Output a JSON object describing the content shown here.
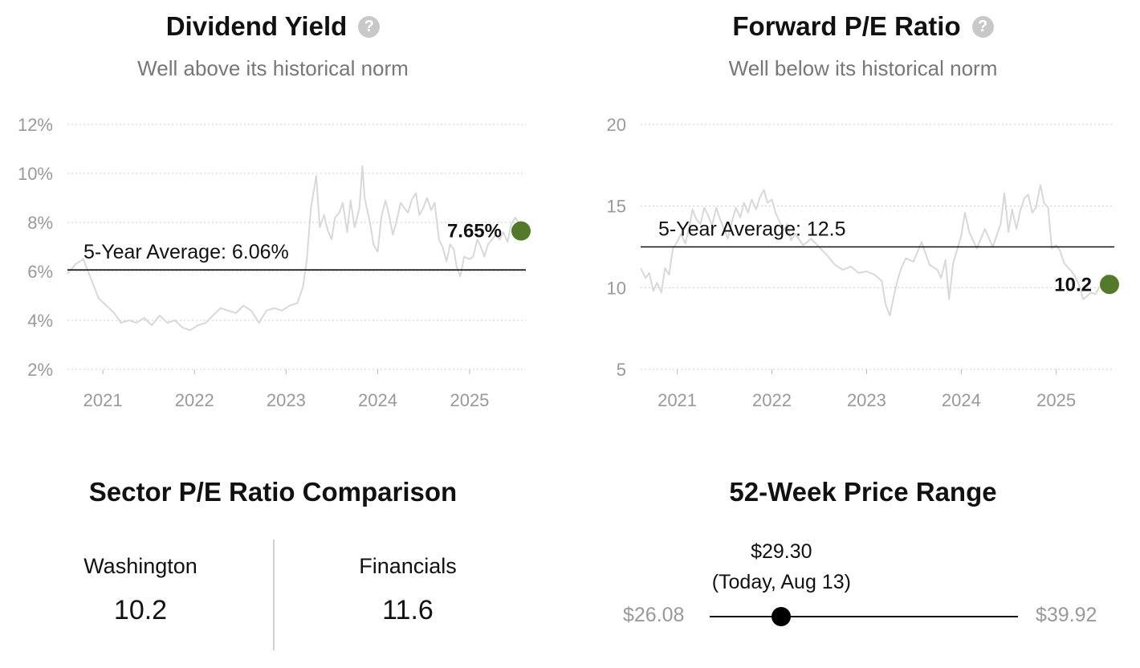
{
  "dividend_panel": {
    "title": "Dividend Yield",
    "subtitle": "Well above its historical norm",
    "help_glyph": "?"
  },
  "pe_panel": {
    "title": "Forward P/E Ratio",
    "subtitle": "Well below its historical norm",
    "help_glyph": "?"
  },
  "colors": {
    "series": "#d8d8d8",
    "current_dot": "#55792a",
    "average_line": "#111111",
    "grid": "#cccccc"
  },
  "chart_data": [
    {
      "type": "line",
      "title": "Dividend Yield",
      "subtitle": "Well above its historical norm",
      "x_range": [
        "2020-08-13",
        "2025-08-13"
      ],
      "x_ticks": [
        "2021",
        "2022",
        "2023",
        "2024",
        "2025"
      ],
      "ylim": [
        1.5,
        12.5
      ],
      "y_ticks": [
        2,
        4,
        6,
        8,
        10,
        12
      ],
      "y_tick_labels": [
        "2%",
        "4%",
        "6%",
        "8%",
        "10%",
        "12%"
      ],
      "grid": true,
      "average": {
        "value": 6.06,
        "label": "5-Year Average: 6.06%"
      },
      "current": {
        "value": 7.65,
        "label": "7.65%"
      },
      "series": [
        {
          "x": [
            "2020-08-13",
            "2020-09-15",
            "2020-10-15",
            "2020-11-15",
            "2020-12-15",
            "2021-01-15",
            "2021-02-15",
            "2021-03-15",
            "2021-04-15",
            "2021-05-15",
            "2021-06-15",
            "2021-07-15",
            "2021-08-15",
            "2021-09-15",
            "2021-10-15",
            "2021-11-15",
            "2021-12-15",
            "2022-01-15",
            "2022-02-15",
            "2022-03-15",
            "2022-04-15",
            "2022-05-15",
            "2022-06-15",
            "2022-07-15",
            "2022-08-15",
            "2022-09-15",
            "2022-10-15",
            "2022-11-15",
            "2022-12-15",
            "2023-01-15",
            "2023-02-15",
            "2023-03-10",
            "2023-03-25",
            "2023-04-10",
            "2023-05-01",
            "2023-05-15",
            "2023-06-01",
            "2023-06-15",
            "2023-07-01",
            "2023-07-15",
            "2023-08-01",
            "2023-08-15",
            "2023-09-01",
            "2023-09-15",
            "2023-10-01",
            "2023-10-20",
            "2023-11-01",
            "2023-11-10",
            "2023-12-01",
            "2023-12-15",
            "2024-01-01",
            "2024-01-15",
            "2024-02-01",
            "2024-02-15",
            "2024-03-01",
            "2024-03-15",
            "2024-04-01",
            "2024-04-15",
            "2024-05-01",
            "2024-05-15",
            "2024-06-01",
            "2024-06-15",
            "2024-07-01",
            "2024-07-15",
            "2024-08-01",
            "2024-08-15",
            "2024-09-01",
            "2024-09-15",
            "2024-10-01",
            "2024-10-15",
            "2024-10-30",
            "2024-11-10",
            "2024-11-25",
            "2024-12-10",
            "2025-01-01",
            "2025-01-15",
            "2025-02-01",
            "2025-02-15",
            "2025-03-01",
            "2025-03-15",
            "2025-04-01",
            "2025-04-15",
            "2025-05-01",
            "2025-05-15",
            "2025-06-01",
            "2025-06-15",
            "2025-07-01",
            "2025-07-15",
            "2025-08-01",
            "2025-08-13"
          ],
          "values": [
            5.9,
            6.3,
            6.5,
            5.7,
            4.9,
            4.6,
            4.3,
            3.9,
            4.0,
            3.9,
            4.1,
            3.8,
            4.2,
            3.9,
            4.0,
            3.7,
            3.6,
            3.8,
            3.9,
            4.2,
            4.5,
            4.4,
            4.3,
            4.6,
            4.4,
            3.9,
            4.4,
            4.5,
            4.4,
            4.6,
            4.7,
            5.4,
            6.5,
            8.6,
            9.9,
            7.8,
            8.3,
            7.7,
            7.3,
            8.2,
            8.4,
            8.8,
            7.6,
            8.9,
            7.8,
            8.6,
            10.3,
            9.0,
            8.0,
            7.1,
            6.8,
            8.2,
            8.9,
            8.3,
            7.5,
            8.0,
            8.8,
            8.6,
            8.4,
            8.9,
            9.2,
            8.3,
            8.6,
            9.0,
            8.5,
            8.8,
            7.3,
            7.0,
            6.4,
            7.1,
            6.9,
            6.2,
            5.8,
            6.6,
            6.5,
            6.6,
            7.3,
            7.0,
            6.6,
            7.1,
            7.3,
            7.5,
            7.3,
            7.6,
            7.2,
            7.9,
            8.2,
            8.0,
            7.7,
            7.65
          ]
        }
      ]
    },
    {
      "type": "line",
      "title": "Forward P/E Ratio",
      "subtitle": "Well below its historical norm",
      "x_range": [
        "2020-08-13",
        "2025-08-13"
      ],
      "x_ticks": [
        "2021",
        "2022",
        "2023",
        "2024",
        "2025"
      ],
      "ylim": [
        3.5,
        21.5
      ],
      "y_ticks": [
        5,
        10,
        15,
        20
      ],
      "y_tick_labels": [
        "5",
        "10",
        "15",
        "20"
      ],
      "grid": true,
      "average": {
        "value": 12.5,
        "label": "5-Year Average: 12.5"
      },
      "current": {
        "value": 10.2,
        "label": "10.2"
      },
      "series": [
        {
          "x": [
            "2020-08-13",
            "2020-09-01",
            "2020-09-15",
            "2020-10-01",
            "2020-10-15",
            "2020-11-01",
            "2020-11-15",
            "2020-12-01",
            "2020-12-15",
            "2021-01-01",
            "2021-01-15",
            "2021-02-01",
            "2021-02-15",
            "2021-03-01",
            "2021-03-15",
            "2021-04-01",
            "2021-04-15",
            "2021-05-01",
            "2021-05-15",
            "2021-06-01",
            "2021-06-15",
            "2021-07-01",
            "2021-07-15",
            "2021-08-01",
            "2021-08-15",
            "2021-09-01",
            "2021-09-15",
            "2021-10-01",
            "2021-10-15",
            "2021-11-01",
            "2021-11-15",
            "2021-12-01",
            "2021-12-15",
            "2022-01-01",
            "2022-01-15",
            "2022-02-01",
            "2022-02-15",
            "2022-03-01",
            "2022-03-15",
            "2022-04-01",
            "2022-05-01",
            "2022-06-01",
            "2022-07-01",
            "2022-08-01",
            "2022-09-01",
            "2022-10-01",
            "2022-11-01",
            "2022-12-01",
            "2023-01-01",
            "2023-02-01",
            "2023-03-01",
            "2023-03-15",
            "2023-04-01",
            "2023-04-15",
            "2023-05-01",
            "2023-05-15",
            "2023-06-01",
            "2023-07-01",
            "2023-08-01",
            "2023-09-01",
            "2023-10-01",
            "2023-10-15",
            "2023-11-01",
            "2023-11-15",
            "2023-12-01",
            "2024-01-01",
            "2024-01-15",
            "2024-02-01",
            "2024-03-01",
            "2024-04-01",
            "2024-05-01",
            "2024-06-01",
            "2024-06-15",
            "2024-07-01",
            "2024-07-15",
            "2024-08-01",
            "2024-08-15",
            "2024-09-01",
            "2024-09-15",
            "2024-10-01",
            "2024-10-15",
            "2024-11-01",
            "2024-11-15",
            "2024-12-01",
            "2024-12-15",
            "2025-01-01",
            "2025-01-15",
            "2025-02-01",
            "2025-03-01",
            "2025-03-15",
            "2025-04-01",
            "2025-04-15",
            "2025-05-01",
            "2025-05-15",
            "2025-06-01",
            "2025-06-15",
            "2025-07-01",
            "2025-07-15",
            "2025-08-01",
            "2025-08-13"
          ],
          "values": [
            11.2,
            10.6,
            10.9,
            9.8,
            10.3,
            9.7,
            11.2,
            10.8,
            12.4,
            12.8,
            13.3,
            12.7,
            13.6,
            14.8,
            14.2,
            13.9,
            14.9,
            14.4,
            13.8,
            14.9,
            14.2,
            13.6,
            13.0,
            14.1,
            14.9,
            14.3,
            15.2,
            14.6,
            15.4,
            14.8,
            15.5,
            16.0,
            15.2,
            15.4,
            14.6,
            14.0,
            13.5,
            13.9,
            12.9,
            13.3,
            12.6,
            13.0,
            12.5,
            12.0,
            11.4,
            11.1,
            11.3,
            10.9,
            11.0,
            10.8,
            10.4,
            9.0,
            8.3,
            9.4,
            10.5,
            11.2,
            11.8,
            11.6,
            12.8,
            11.4,
            11.1,
            10.6,
            11.7,
            9.3,
            11.5,
            13.2,
            14.6,
            13.4,
            12.4,
            13.6,
            12.5,
            13.9,
            15.8,
            13.4,
            14.8,
            13.6,
            14.7,
            15.5,
            15.7,
            14.6,
            14.9,
            16.3,
            15.2,
            14.9,
            12.4,
            12.6,
            12.3,
            11.5,
            11.0,
            10.7,
            10.1,
            9.3,
            9.5,
            9.7,
            9.6,
            10.0,
            10.3,
            10.8,
            9.9,
            10.2
          ]
        }
      ]
    }
  ],
  "sector": {
    "title": "Sector P/E Ratio Comparison",
    "items": [
      {
        "name": "Washington",
        "value": "10.2"
      },
      {
        "name": "Financials",
        "value": "11.6"
      }
    ]
  },
  "price_range": {
    "title": "52-Week Price Range",
    "current_price": "$29.30",
    "current_note": "(Today, Aug 13)",
    "low": "$26.08",
    "high": "$39.92",
    "low_value": 26.08,
    "high_value": 39.92,
    "current_value": 29.3
  }
}
